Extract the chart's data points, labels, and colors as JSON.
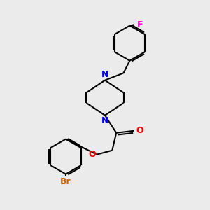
{
  "bg_color": "#ebebeb",
  "bond_color": "#000000",
  "N_color": "#0000ff",
  "O_color": "#ff0000",
  "F_color": "#ff00cc",
  "Br_color": "#cc6600",
  "line_width": 1.5,
  "font_size": 9,
  "figsize": [
    3.0,
    3.0
  ],
  "dpi": 100,
  "xlim": [
    0,
    10
  ],
  "ylim": [
    0,
    10
  ]
}
